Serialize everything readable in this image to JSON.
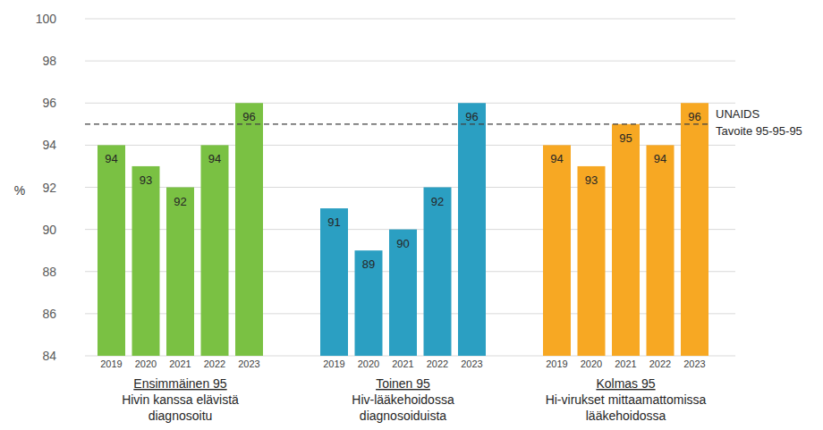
{
  "chart_data": {
    "type": "bar",
    "y_label": "%",
    "categories": [
      "2019",
      "2020",
      "2021",
      "2022",
      "2023"
    ],
    "series": [
      {
        "name": "Ensimmäinen 95",
        "description": [
          "Hivin kanssa elävistä",
          "diagnosoitu"
        ],
        "color": "#7ac143",
        "values": [
          94,
          93,
          92,
          94,
          96
        ]
      },
      {
        "name": "Toinen 95",
        "description": [
          "Hiv-lääkehoidossa",
          "diagnosoiduista"
        ],
        "color": "#2b9fc2",
        "values": [
          91,
          89,
          90,
          92,
          96
        ]
      },
      {
        "name": "Kolmas 95",
        "description": [
          "Hi-virukset mittaamattomissa",
          "lääkehoidossa"
        ],
        "color": "#f7a823",
        "values": [
          94,
          93,
          95,
          94,
          96
        ]
      }
    ],
    "annotations": [
      {
        "value": 95,
        "label": [
          "UNAIDS",
          "Tavoite 95-95-95"
        ],
        "line_style": "dashed"
      }
    ],
    "ylim": [
      84,
      100
    ],
    "yticks": [
      84,
      86,
      88,
      90,
      92,
      94,
      96,
      98,
      100
    ],
    "grid": true,
    "data_labels": true
  }
}
